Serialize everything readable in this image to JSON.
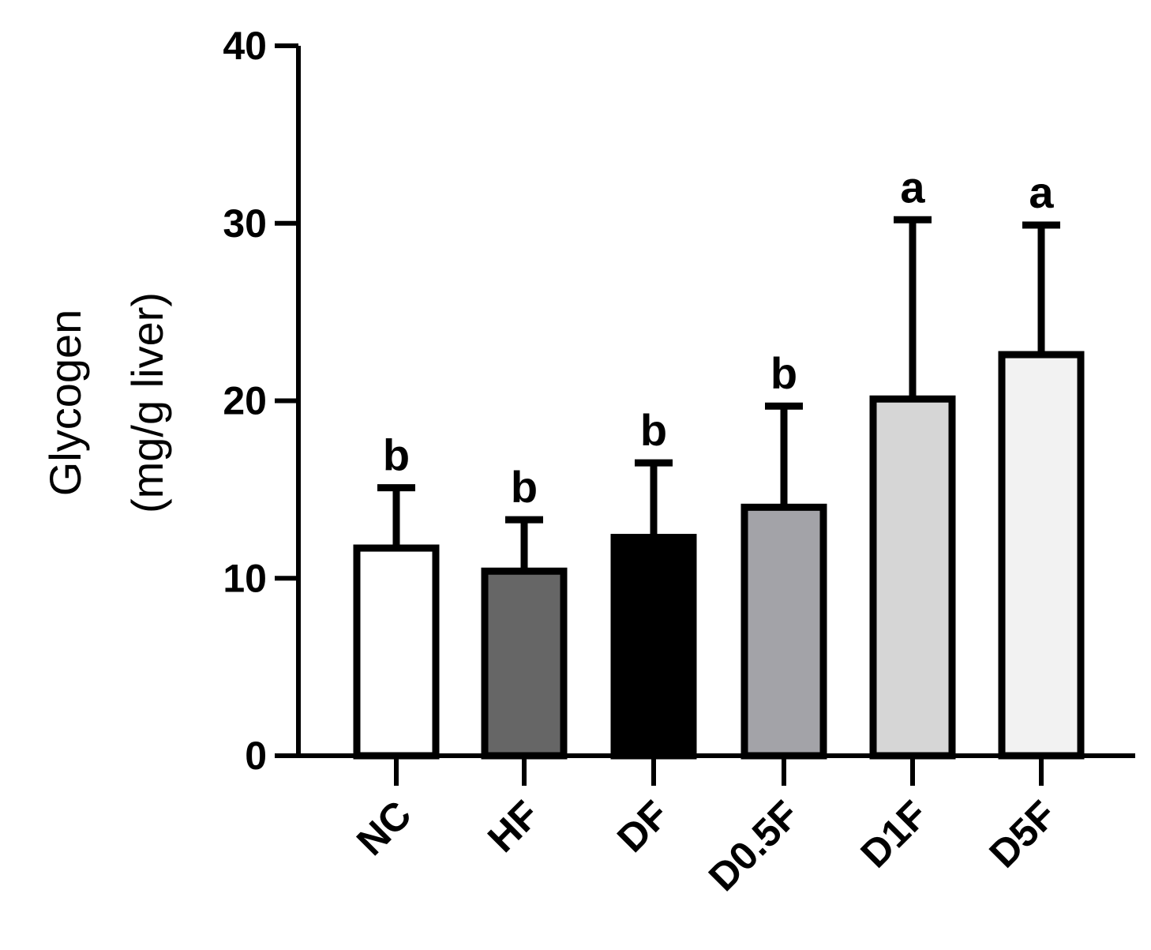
{
  "chart_data": {
    "type": "bar",
    "categories": [
      "NC",
      "HF",
      "DF",
      "D0.5F",
      "D1F",
      "D5F"
    ],
    "values": [
      11.7,
      10.4,
      12.3,
      14.0,
      20.1,
      22.6
    ],
    "errors": [
      3.4,
      2.9,
      4.2,
      5.7,
      10.1,
      7.3
    ],
    "significance": [
      "b",
      "b",
      "b",
      "b",
      "a",
      "a"
    ],
    "colors": [
      "#ffffff",
      "#666666",
      "#000000",
      "#a3a3a8",
      "#d6d6d6",
      "#f2f2f2"
    ],
    "title": "",
    "xlabel": "",
    "ylabel_line1": "Glycogen",
    "ylabel_line2": "(mg/g liver)",
    "ylim": [
      0,
      40
    ],
    "yticks": [
      0,
      10,
      20,
      30,
      40
    ],
    "grid": false
  }
}
